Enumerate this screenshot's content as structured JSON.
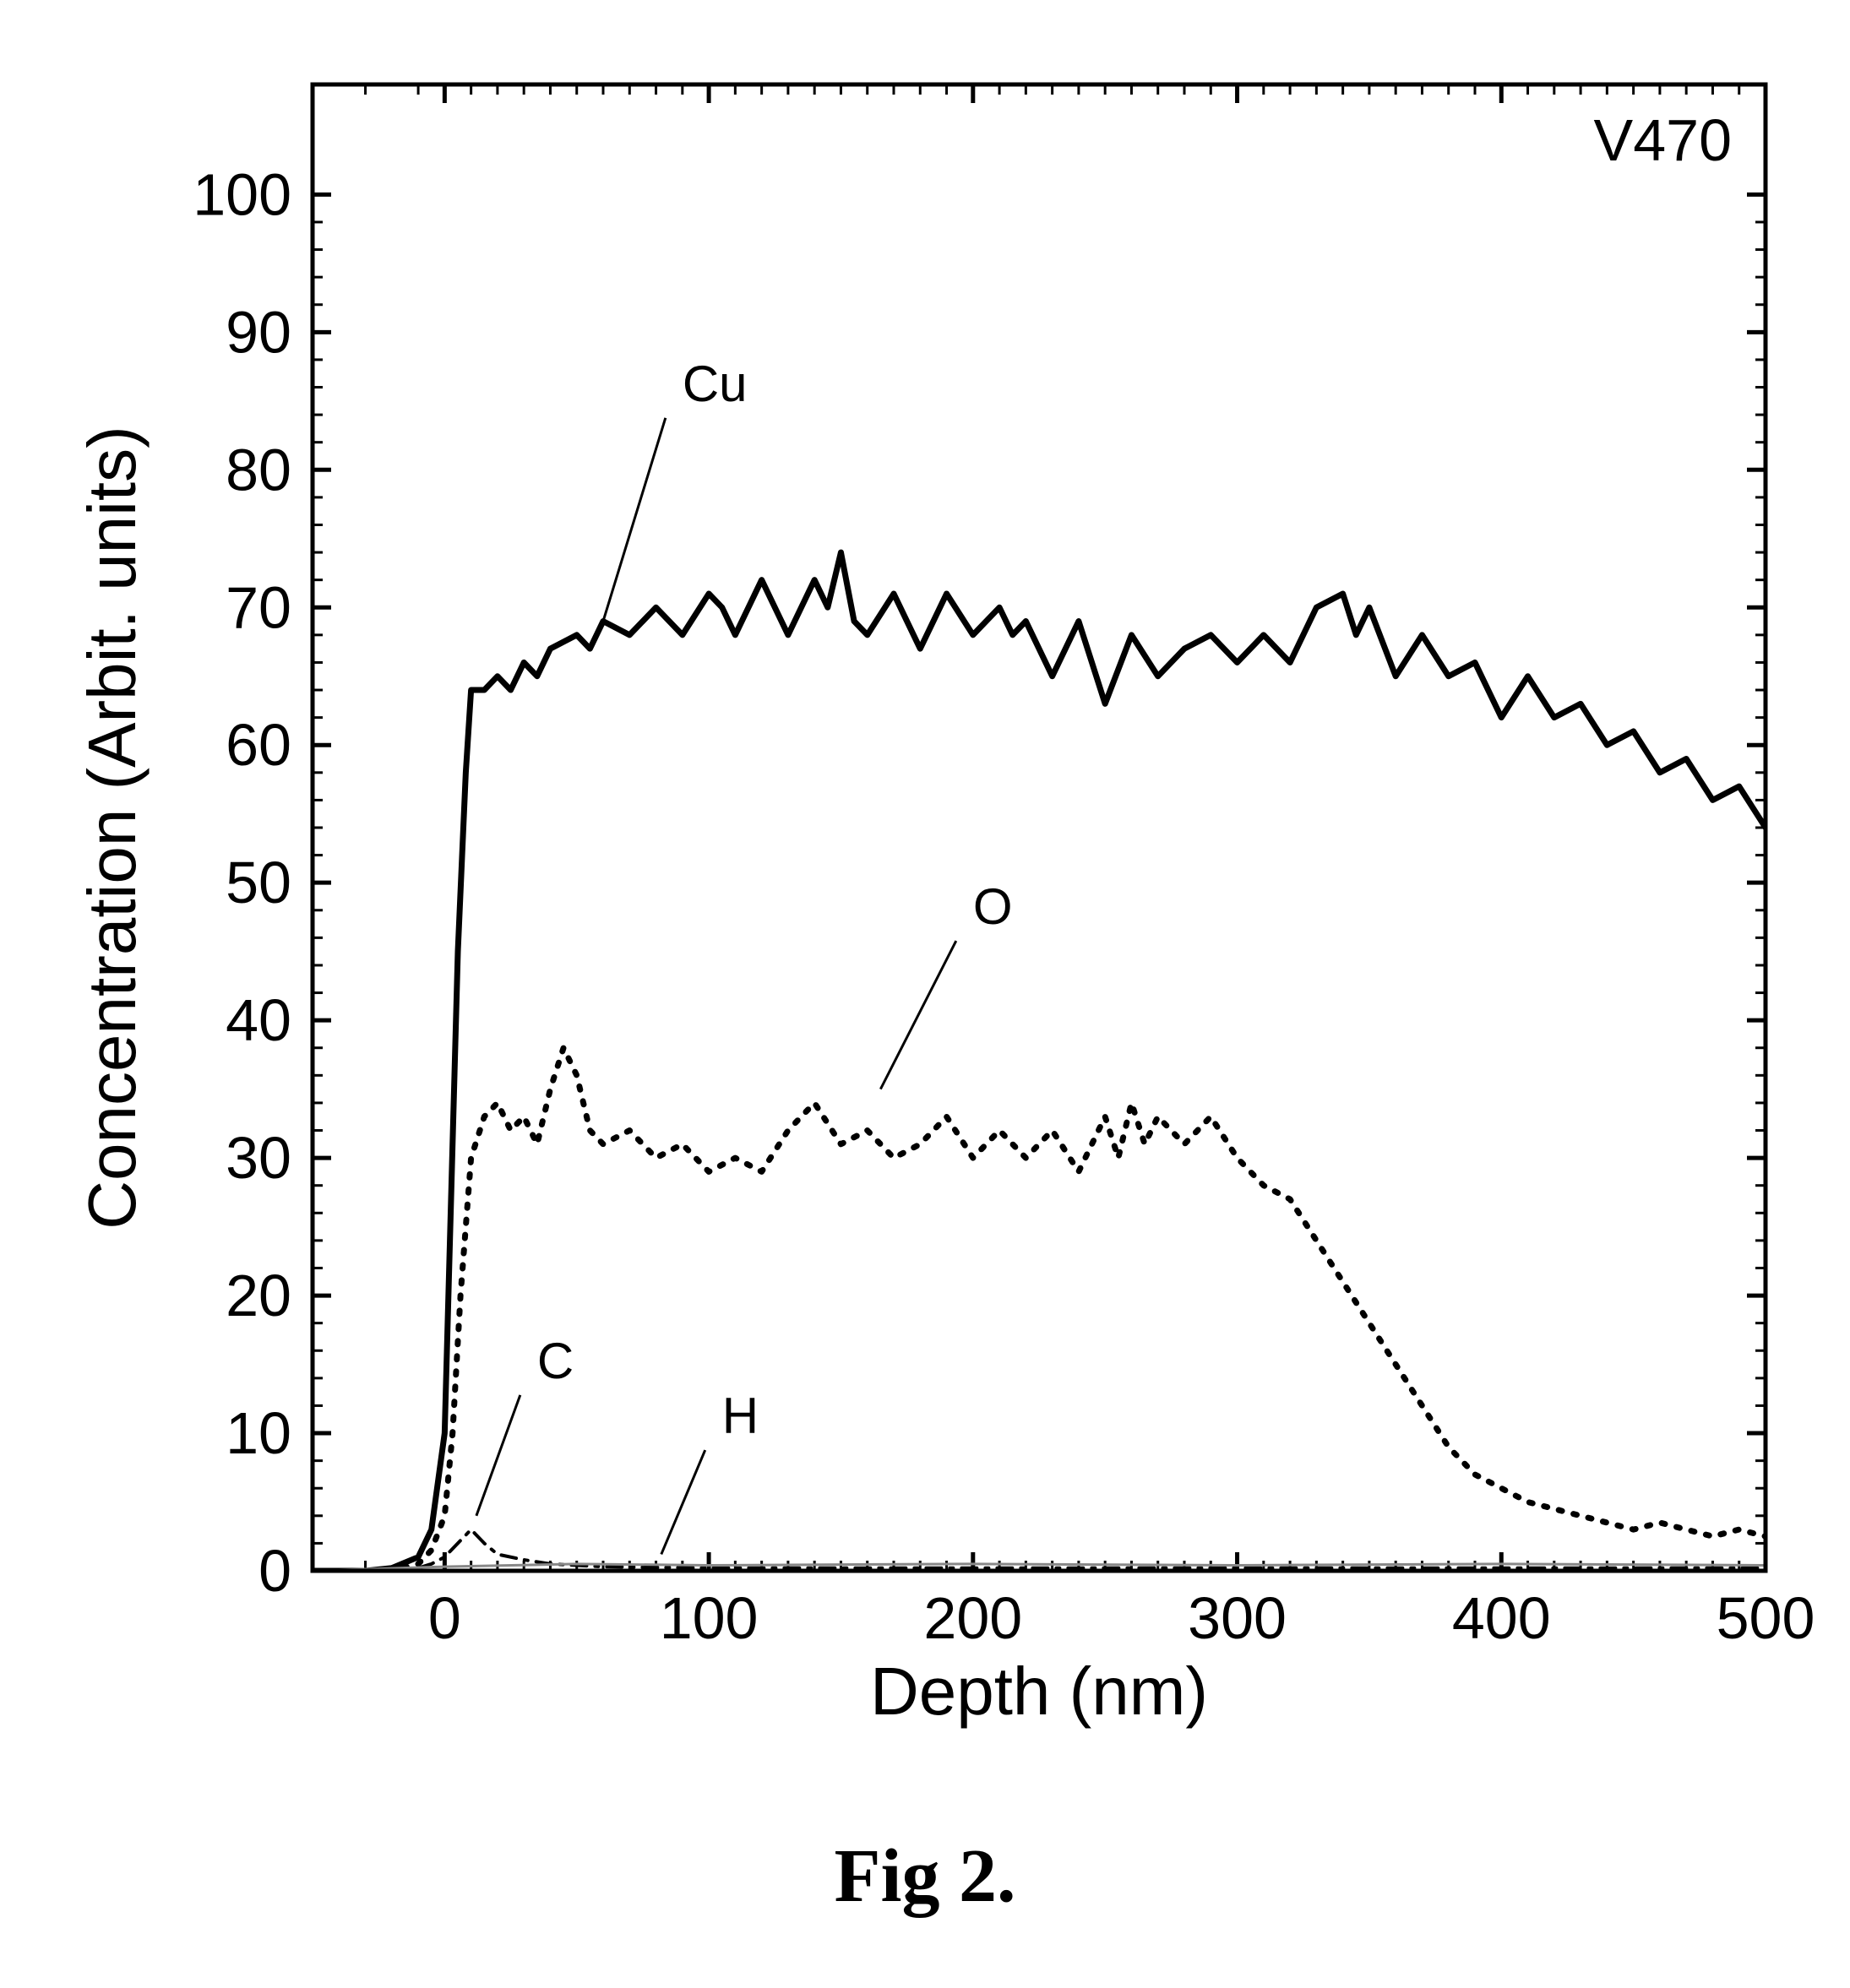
{
  "chart": {
    "type": "line",
    "caption": "Fig 2.",
    "annotation": "V470",
    "xlabel": "Depth (nm)",
    "ylabel": "Concentration (Arbit. units)",
    "xlim": [
      -50,
      500
    ],
    "ylim": [
      0,
      108
    ],
    "xticks": [
      0,
      100,
      200,
      300,
      400,
      500
    ],
    "yticks": [
      0,
      10,
      20,
      30,
      40,
      50,
      60,
      70,
      80,
      90,
      100
    ],
    "background_color": "#ffffff",
    "axis_color": "#000000",
    "axis_linewidth": 5,
    "tick_length": 22,
    "minor_tick_length": 12,
    "minor_tick_count": 4,
    "tick_fontsize": 70,
    "label_fontsize": 80,
    "annotation_fontsize": 70,
    "series": [
      {
        "name": "Cu",
        "label": "Cu",
        "label_pos": {
          "x": 90,
          "y": 85,
          "line_to_x": 60,
          "line_to_y": 69
        },
        "color": "#000000",
        "linewidth": 7,
        "dash": "solid",
        "data": [
          {
            "x": -50,
            "y": 0
          },
          {
            "x": -30,
            "y": 0
          },
          {
            "x": -20,
            "y": 0.2
          },
          {
            "x": -10,
            "y": 1
          },
          {
            "x": -5,
            "y": 3
          },
          {
            "x": 0,
            "y": 10
          },
          {
            "x": 5,
            "y": 45
          },
          {
            "x": 8,
            "y": 58
          },
          {
            "x": 10,
            "y": 64
          },
          {
            "x": 15,
            "y": 64
          },
          {
            "x": 20,
            "y": 65
          },
          {
            "x": 25,
            "y": 64
          },
          {
            "x": 30,
            "y": 66
          },
          {
            "x": 35,
            "y": 65
          },
          {
            "x": 40,
            "y": 67
          },
          {
            "x": 50,
            "y": 68
          },
          {
            "x": 55,
            "y": 67
          },
          {
            "x": 60,
            "y": 69
          },
          {
            "x": 70,
            "y": 68
          },
          {
            "x": 80,
            "y": 70
          },
          {
            "x": 90,
            "y": 68
          },
          {
            "x": 100,
            "y": 71
          },
          {
            "x": 105,
            "y": 70
          },
          {
            "x": 110,
            "y": 68
          },
          {
            "x": 120,
            "y": 72
          },
          {
            "x": 130,
            "y": 68
          },
          {
            "x": 140,
            "y": 72
          },
          {
            "x": 145,
            "y": 70
          },
          {
            "x": 150,
            "y": 74
          },
          {
            "x": 155,
            "y": 69
          },
          {
            "x": 160,
            "y": 68
          },
          {
            "x": 170,
            "y": 71
          },
          {
            "x": 180,
            "y": 67
          },
          {
            "x": 190,
            "y": 71
          },
          {
            "x": 200,
            "y": 68
          },
          {
            "x": 210,
            "y": 70
          },
          {
            "x": 215,
            "y": 68
          },
          {
            "x": 220,
            "y": 69
          },
          {
            "x": 230,
            "y": 65
          },
          {
            "x": 240,
            "y": 69
          },
          {
            "x": 250,
            "y": 63
          },
          {
            "x": 260,
            "y": 68
          },
          {
            "x": 270,
            "y": 65
          },
          {
            "x": 280,
            "y": 67
          },
          {
            "x": 290,
            "y": 68
          },
          {
            "x": 300,
            "y": 66
          },
          {
            "x": 310,
            "y": 68
          },
          {
            "x": 320,
            "y": 66
          },
          {
            "x": 330,
            "y": 70
          },
          {
            "x": 340,
            "y": 71
          },
          {
            "x": 345,
            "y": 68
          },
          {
            "x": 350,
            "y": 70
          },
          {
            "x": 360,
            "y": 65
          },
          {
            "x": 370,
            "y": 68
          },
          {
            "x": 380,
            "y": 65
          },
          {
            "x": 390,
            "y": 66
          },
          {
            "x": 400,
            "y": 62
          },
          {
            "x": 410,
            "y": 65
          },
          {
            "x": 420,
            "y": 62
          },
          {
            "x": 430,
            "y": 63
          },
          {
            "x": 440,
            "y": 60
          },
          {
            "x": 450,
            "y": 61
          },
          {
            "x": 460,
            "y": 58
          },
          {
            "x": 470,
            "y": 59
          },
          {
            "x": 480,
            "y": 56
          },
          {
            "x": 490,
            "y": 57
          },
          {
            "x": 500,
            "y": 54
          }
        ]
      },
      {
        "name": "O",
        "label": "O",
        "label_pos": {
          "x": 200,
          "y": 47,
          "line_to_x": 165,
          "line_to_y": 35
        },
        "color": "#000000",
        "linewidth": 7,
        "dash": "dotted",
        "data": [
          {
            "x": -50,
            "y": 0
          },
          {
            "x": -20,
            "y": 0
          },
          {
            "x": -10,
            "y": 0.5
          },
          {
            "x": -5,
            "y": 1.5
          },
          {
            "x": 0,
            "y": 4
          },
          {
            "x": 3,
            "y": 10
          },
          {
            "x": 6,
            "y": 20
          },
          {
            "x": 10,
            "y": 30
          },
          {
            "x": 15,
            "y": 33
          },
          {
            "x": 20,
            "y": 34
          },
          {
            "x": 25,
            "y": 32
          },
          {
            "x": 30,
            "y": 33
          },
          {
            "x": 35,
            "y": 31
          },
          {
            "x": 40,
            "y": 35
          },
          {
            "x": 45,
            "y": 38
          },
          {
            "x": 50,
            "y": 36
          },
          {
            "x": 55,
            "y": 32
          },
          {
            "x": 60,
            "y": 31
          },
          {
            "x": 70,
            "y": 32
          },
          {
            "x": 80,
            "y": 30
          },
          {
            "x": 90,
            "y": 31
          },
          {
            "x": 100,
            "y": 29
          },
          {
            "x": 110,
            "y": 30
          },
          {
            "x": 120,
            "y": 29
          },
          {
            "x": 130,
            "y": 32
          },
          {
            "x": 140,
            "y": 34
          },
          {
            "x": 150,
            "y": 31
          },
          {
            "x": 160,
            "y": 32
          },
          {
            "x": 170,
            "y": 30
          },
          {
            "x": 180,
            "y": 31
          },
          {
            "x": 190,
            "y": 33
          },
          {
            "x": 200,
            "y": 30
          },
          {
            "x": 210,
            "y": 32
          },
          {
            "x": 220,
            "y": 30
          },
          {
            "x": 230,
            "y": 32
          },
          {
            "x": 240,
            "y": 29
          },
          {
            "x": 250,
            "y": 33
          },
          {
            "x": 255,
            "y": 30
          },
          {
            "x": 260,
            "y": 34
          },
          {
            "x": 265,
            "y": 31
          },
          {
            "x": 270,
            "y": 33
          },
          {
            "x": 280,
            "y": 31
          },
          {
            "x": 290,
            "y": 33
          },
          {
            "x": 300,
            "y": 30
          },
          {
            "x": 310,
            "y": 28
          },
          {
            "x": 320,
            "y": 27
          },
          {
            "x": 330,
            "y": 24
          },
          {
            "x": 340,
            "y": 21
          },
          {
            "x": 350,
            "y": 18
          },
          {
            "x": 360,
            "y": 15
          },
          {
            "x": 370,
            "y": 12
          },
          {
            "x": 380,
            "y": 9
          },
          {
            "x": 390,
            "y": 7
          },
          {
            "x": 400,
            "y": 6
          },
          {
            "x": 410,
            "y": 5
          },
          {
            "x": 420,
            "y": 4.5
          },
          {
            "x": 430,
            "y": 4
          },
          {
            "x": 440,
            "y": 3.5
          },
          {
            "x": 450,
            "y": 3
          },
          {
            "x": 460,
            "y": 3.5
          },
          {
            "x": 470,
            "y": 3
          },
          {
            "x": 480,
            "y": 2.5
          },
          {
            "x": 490,
            "y": 3
          },
          {
            "x": 500,
            "y": 2.5
          }
        ]
      },
      {
        "name": "C",
        "label": "C",
        "label_pos": {
          "x": 35,
          "y": 14,
          "line_to_x": 12,
          "line_to_y": 4
        },
        "color": "#000000",
        "linewidth": 4,
        "dash": "dashdot",
        "data": [
          {
            "x": -50,
            "y": 0
          },
          {
            "x": -20,
            "y": 0
          },
          {
            "x": -10,
            "y": 0.2
          },
          {
            "x": -5,
            "y": 0.5
          },
          {
            "x": 0,
            "y": 1
          },
          {
            "x": 5,
            "y": 2
          },
          {
            "x": 10,
            "y": 3
          },
          {
            "x": 15,
            "y": 2
          },
          {
            "x": 20,
            "y": 1.2
          },
          {
            "x": 30,
            "y": 0.8
          },
          {
            "x": 40,
            "y": 0.5
          },
          {
            "x": 60,
            "y": 0.3
          },
          {
            "x": 100,
            "y": 0.2
          },
          {
            "x": 200,
            "y": 0.2
          },
          {
            "x": 300,
            "y": 0.2
          },
          {
            "x": 400,
            "y": 0.2
          },
          {
            "x": 500,
            "y": 0.2
          }
        ]
      },
      {
        "name": "H",
        "label": "H",
        "label_pos": {
          "x": 105,
          "y": 10,
          "line_to_x": 82,
          "line_to_y": 1.2
        },
        "color": "#888888",
        "linewidth": 3,
        "dash": "solid",
        "data": [
          {
            "x": -50,
            "y": 0
          },
          {
            "x": 0,
            "y": 0.3
          },
          {
            "x": 50,
            "y": 0.5
          },
          {
            "x": 100,
            "y": 0.4
          },
          {
            "x": 200,
            "y": 0.5
          },
          {
            "x": 300,
            "y": 0.4
          },
          {
            "x": 400,
            "y": 0.5
          },
          {
            "x": 500,
            "y": 0.4
          }
        ]
      }
    ]
  }
}
